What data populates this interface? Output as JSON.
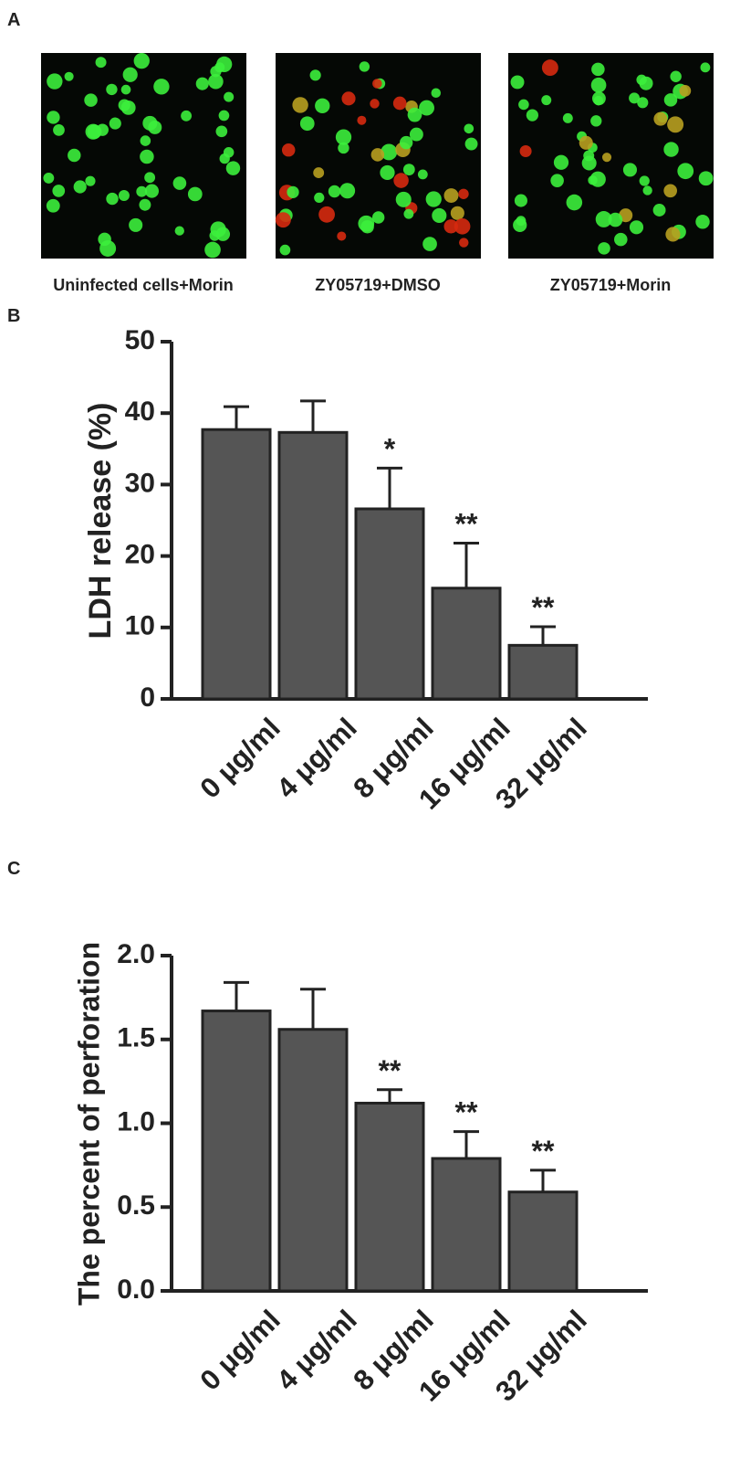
{
  "panel_labels": [
    "A",
    "B",
    "C"
  ],
  "images": [
    {
      "caption": "Uninfected cells+Morin"
    },
    {
      "caption": "ZY05719+DMSO"
    },
    {
      "caption": "ZY05719+Morin"
    }
  ],
  "chart_data": [
    {
      "type": "bar",
      "ylabel": "LDH release (%)",
      "categories": [
        "0 μg/ml",
        "4 μg/ml",
        "8 μg/ml",
        "16 μg/ml",
        "32 μg/ml"
      ],
      "values": [
        37.7,
        37.3,
        26.6,
        15.5,
        7.5
      ],
      "errors": [
        3.2,
        4.4,
        5.7,
        6.3,
        2.6
      ],
      "annotations": [
        null,
        null,
        "*",
        "**",
        "**"
      ],
      "color": "#555555",
      "ylim": [
        0,
        50
      ],
      "yticks": [
        0,
        10,
        20,
        30,
        40,
        50
      ]
    },
    {
      "type": "bar",
      "ylabel": "The percent of perforation",
      "categories": [
        "0 μg/ml",
        "4 μg/ml",
        "8 μg/ml",
        "16 μg/ml",
        "32 μg/ml"
      ],
      "values": [
        1.67,
        1.56,
        1.12,
        0.79,
        0.59
      ],
      "errors": [
        0.17,
        0.24,
        0.08,
        0.16,
        0.13
      ],
      "annotations": [
        null,
        null,
        "**",
        "**",
        "**"
      ],
      "color": "#555555",
      "ylim": [
        0,
        2
      ],
      "yticks": [
        {
          "value": 0,
          "label": "0.0"
        },
        {
          "value": 0.5,
          "label": "0.5"
        },
        {
          "value": 1,
          "label": "1.0"
        },
        {
          "value": 1.5,
          "label": "1.5"
        },
        {
          "value": 2,
          "label": "2.0"
        }
      ]
    }
  ]
}
